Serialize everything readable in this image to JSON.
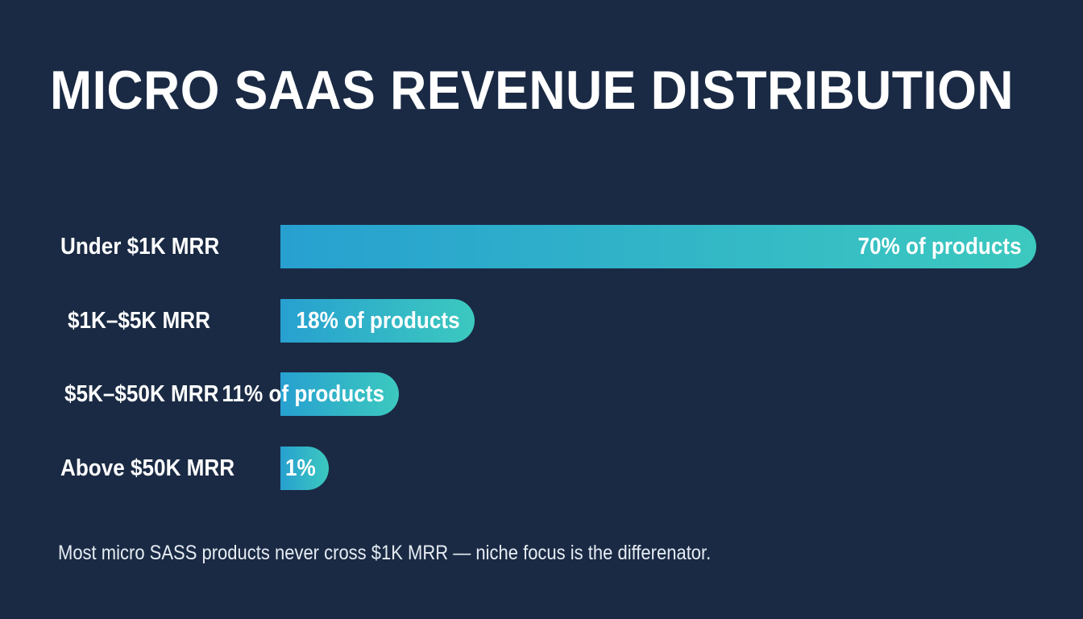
{
  "chart_data": {
    "type": "bar",
    "orientation": "horizontal",
    "title": "MICRO SAAS REVENUE DISTRIBUTION",
    "categories": [
      "Under $1K MRR",
      "$1K–$5K MRR",
      "$5K–$50K MRR",
      "Above $50K MRR"
    ],
    "values": [
      70,
      18,
      11,
      1
    ],
    "value_labels": [
      "70% of products",
      "18% of products",
      "11% of products",
      "1%"
    ],
    "unit": "%",
    "xlim": [
      0,
      70
    ],
    "grid": false,
    "legend": "none",
    "colors": {
      "background": "#1a2a44",
      "bar_start": "#27a0d0",
      "bar_end": "#3cc9bf",
      "text": "#ffffff"
    }
  },
  "footnote": "Most micro SASS products never cross $1K MRR — niche focus is the differenator."
}
